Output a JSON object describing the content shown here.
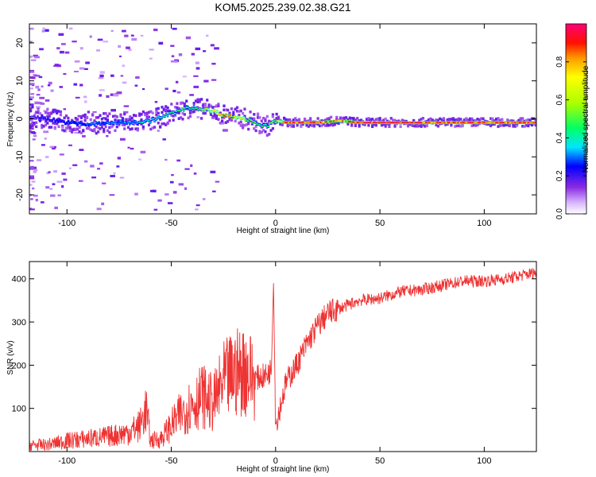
{
  "title": "KOM5.2025.239.02.38.G21",
  "chart_data": [
    {
      "type": "heatmap",
      "xlabel": "Height of straight line (km)",
      "ylabel": "Frequency (Hz)",
      "xlim": [
        -118,
        125
      ],
      "ylim": [
        -25,
        25
      ],
      "x_ticks": [
        -100,
        -50,
        0,
        50,
        100
      ],
      "y_ticks": [
        -20,
        -10,
        0,
        10,
        20
      ],
      "colorbar": {
        "label": "Normalized spectral amplitude",
        "range": [
          0,
          1
        ],
        "ticks": [
          "0.0",
          "0.2",
          "0.4",
          "0.6",
          "0.8"
        ]
      },
      "ridge": {
        "x": [
          -118,
          -110,
          -100,
          -90,
          -80,
          -70,
          -60,
          -55,
          -50,
          -45,
          -40,
          -35,
          -30,
          -25,
          -20,
          -15,
          -10,
          -5,
          0,
          5,
          10,
          20,
          30,
          40,
          50,
          60,
          70,
          80,
          90,
          100,
          110,
          125
        ],
        "y": [
          0.5,
          0,
          -1,
          -1.5,
          -1,
          -1,
          -0.5,
          0.5,
          1.5,
          2.5,
          3,
          2.5,
          2,
          1,
          0.5,
          0,
          -1,
          -2,
          -0.5,
          -1,
          -1,
          -1,
          -0.5,
          -1,
          -1,
          -1,
          -1,
          -1,
          -1,
          -1,
          -1,
          -1
        ],
        "amplitude": [
          0.1,
          0.2,
          0.25,
          0.3,
          0.3,
          0.35,
          0.4,
          0.4,
          0.45,
          0.5,
          0.45,
          0.55,
          0.7,
          0.85,
          0.8,
          0.6,
          0.5,
          0.45,
          0.6,
          0.85,
          0.9,
          0.85,
          0.8,
          0.95,
          0.95,
          0.95,
          0.9,
          0.85,
          0.9,
          0.9,
          0.85,
          0.9
        ]
      }
    },
    {
      "type": "line",
      "xlabel": "Height of straight line (km)",
      "ylabel": "SNR (v/v)",
      "xlim": [
        -118,
        125
      ],
      "ylim": [
        0,
        440
      ],
      "x_ticks": [
        -100,
        -50,
        0,
        50,
        100
      ],
      "y_ticks": [
        100,
        200,
        300,
        400
      ],
      "color": "#ee3333",
      "series": [
        {
          "x": [
            -118,
            -110,
            -100,
            -90,
            -80,
            -70,
            -65,
            -62,
            -60,
            -55,
            -50,
            -45,
            -40,
            -35,
            -30,
            -25,
            -20,
            -15,
            -10,
            -5,
            -2,
            -1,
            0,
            5,
            10,
            15,
            20,
            25,
            30,
            40,
            50,
            60,
            70,
            80,
            90,
            100,
            110,
            125
          ],
          "y": [
            15,
            15,
            25,
            30,
            35,
            45,
            60,
            100,
            25,
            30,
            60,
            90,
            110,
            130,
            110,
            160,
            180,
            190,
            170,
            175,
            190,
            390,
            60,
            160,
            200,
            250,
            290,
            320,
            330,
            350,
            355,
            370,
            375,
            385,
            395,
            395,
            400,
            415
          ]
        }
      ]
    }
  ]
}
